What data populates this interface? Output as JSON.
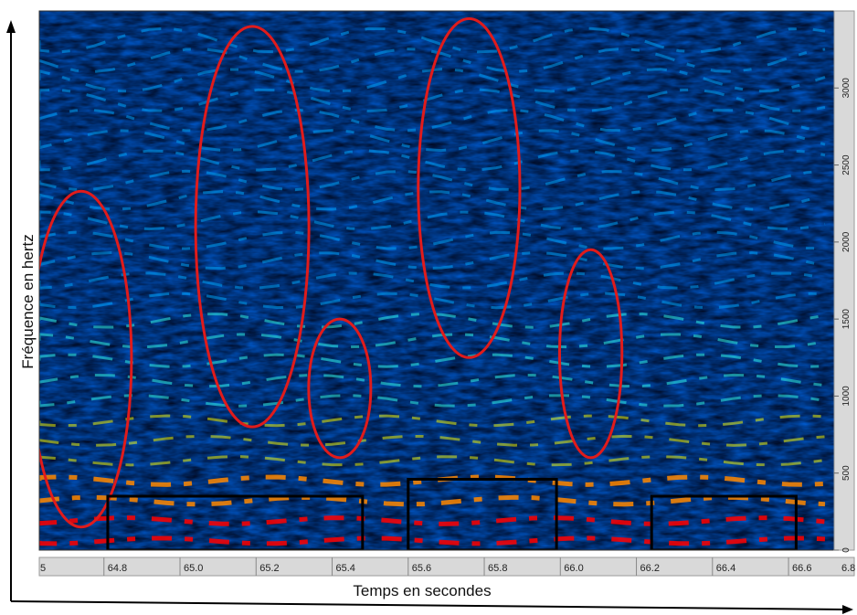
{
  "chart_data": {
    "type": "heatmap",
    "title": "",
    "xlabel": "Temps en secondes",
    "ylabel": "Fréquence en hertz",
    "x_ticks": [
      "64.8",
      "65.0",
      "65.2",
      "65.4",
      "65.6",
      "65.8",
      "66.0",
      "66.2",
      "66.4",
      "66.6"
    ],
    "x_edge_left": "5",
    "x_edge_right": "6.8",
    "y_ticks": [
      "0",
      "500",
      "1000",
      "1500",
      "2000",
      "2500",
      "3000"
    ],
    "xlim": [
      64.63,
      66.72
    ],
    "ylim": [
      0,
      3500
    ],
    "colormap": [
      "#000000",
      "#00008b",
      "#0033ff",
      "#00aaff",
      "#33ffee",
      "#ffff00",
      "#ff8800",
      "#ff0000"
    ],
    "annotation_colors": {
      "ellipse": "#e01b1b",
      "box": "#000000"
    },
    "annotations": [
      {
        "shape": "ellipse",
        "x": 64.74,
        "y_range": [
          150,
          2330
        ]
      },
      {
        "shape": "ellipse",
        "x": 65.19,
        "y_range": [
          800,
          3400
        ]
      },
      {
        "shape": "ellipse",
        "x": 65.42,
        "y_range": [
          600,
          1500
        ]
      },
      {
        "shape": "ellipse",
        "x": 65.76,
        "y_range": [
          1250,
          3450
        ]
      },
      {
        "shape": "ellipse",
        "x": 66.08,
        "y_range": [
          600,
          1950
        ]
      },
      {
        "shape": "box",
        "x_range": [
          64.81,
          65.48
        ],
        "y_range": [
          0,
          350
        ]
      },
      {
        "shape": "box",
        "x_range": [
          65.6,
          65.99
        ],
        "y_range": [
          0,
          460
        ]
      },
      {
        "shape": "box",
        "x_range": [
          66.24,
          66.62
        ],
        "y_range": [
          0,
          350
        ]
      }
    ]
  }
}
